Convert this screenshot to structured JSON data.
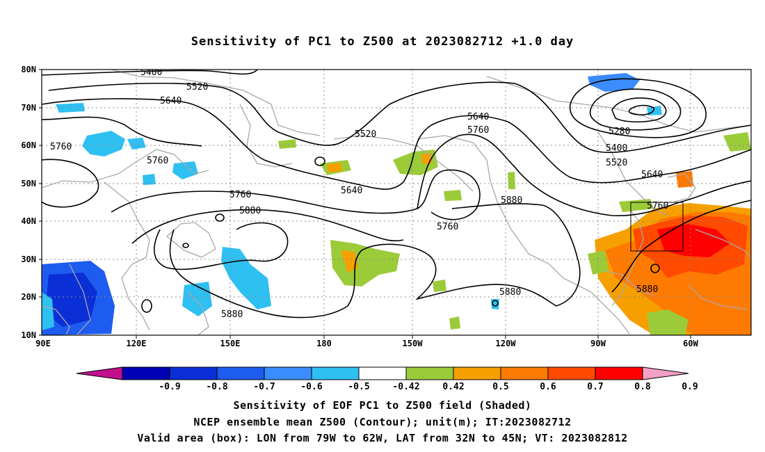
{
  "title": "Sensitivity of PC1 to Z500 at 2023082712 +1.0 day",
  "map": {
    "lat_labels": [
      "80N",
      "70N",
      "60N",
      "50N",
      "40N",
      "30N",
      "20N",
      "10N"
    ],
    "lon_labels": [
      "90E",
      "120E",
      "150E",
      "180",
      "150W",
      "120W",
      "90W",
      "60W"
    ],
    "contour_levels": [
      "5400",
      "5520",
      "5640",
      "5760",
      "5880",
      "5280"
    ],
    "valid_box": {
      "lon_west": -79,
      "lon_east": -62,
      "lat_south": 32,
      "lat_north": 45
    }
  },
  "contour_labels": [
    {
      "text": "5400"
    },
    {
      "text": "5520"
    },
    {
      "text": "5640"
    },
    {
      "text": "5760"
    },
    {
      "text": "5760"
    },
    {
      "text": "5760"
    },
    {
      "text": "5880"
    },
    {
      "text": "5880"
    },
    {
      "text": "5520"
    },
    {
      "text": "5640"
    },
    {
      "text": "5640"
    },
    {
      "text": "5760"
    },
    {
      "text": "5760"
    },
    {
      "text": "5880"
    },
    {
      "text": "5880"
    },
    {
      "text": "5280"
    },
    {
      "text": "5400"
    },
    {
      "text": "5520"
    },
    {
      "text": "5640"
    },
    {
      "text": "5760"
    },
    {
      "text": "5880"
    }
  ],
  "colorbar": {
    "ticks": [
      "-0.9",
      "-0.8",
      "-0.7",
      "-0.6",
      "-0.5",
      "-0.42",
      "0.42",
      "0.5",
      "0.6",
      "0.7",
      "0.8",
      "0.9"
    ],
    "colors": [
      "#c20f8d",
      "#0000b4",
      "#0a2fd6",
      "#1e5cf0",
      "#3a8cff",
      "#2fc0f2",
      "#ffffff",
      "#9ccb3a",
      "#f5a000",
      "#ff7a00",
      "#ff4a00",
      "#ff0000",
      "#f5a0c8"
    ]
  },
  "captions": [
    "Sensitivity of EOF PC1 to Z500 field (Shaded)",
    "NCEP ensemble mean Z500 (Contour); unit(m); IT:2023082712",
    "Valid area (box): LON from 79W to 62W, LAT from 32N to 45N; VT: 2023082812"
  ]
}
